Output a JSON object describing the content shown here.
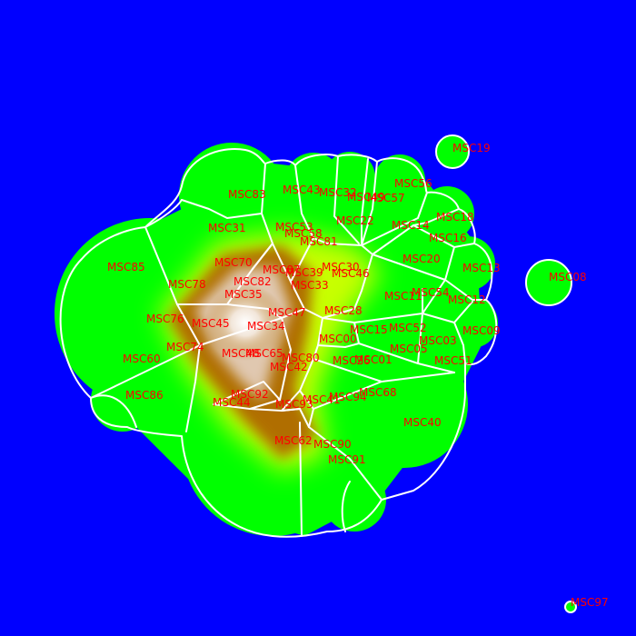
{
  "colors": {
    "background": "#0000ff",
    "land_low": "#00ff00",
    "land_mid": "#c8ff00",
    "land_high": "#b06e00",
    "peak": "#ffffff",
    "border": "#ffffff",
    "label": "#ff0000"
  },
  "regions": [
    {
      "id": "MSC19"
    },
    {
      "id": "MSC56"
    },
    {
      "id": "MSC43"
    },
    {
      "id": "MSC32"
    },
    {
      "id": "MSC83"
    },
    {
      "id": "MSC49"
    },
    {
      "id": "MSC57"
    },
    {
      "id": "MSC18"
    },
    {
      "id": "MSC31"
    },
    {
      "id": "MSC53"
    },
    {
      "id": "MSC22"
    },
    {
      "id": "MSC14"
    },
    {
      "id": "MSC58"
    },
    {
      "id": "MSC16"
    },
    {
      "id": "MSC81"
    },
    {
      "id": "MSC85"
    },
    {
      "id": "MSC20"
    },
    {
      "id": "MSC70"
    },
    {
      "id": "MSC30"
    },
    {
      "id": "MSC13"
    },
    {
      "id": "MSC87"
    },
    {
      "id": "MSC39"
    },
    {
      "id": "MSC46"
    },
    {
      "id": "MSC08"
    },
    {
      "id": "MSC82"
    },
    {
      "id": "MSC78"
    },
    {
      "id": "MSC33"
    },
    {
      "id": "MSC54"
    },
    {
      "id": "MSC35"
    },
    {
      "id": "MSC11"
    },
    {
      "id": "MSC12"
    },
    {
      "id": "MSC47"
    },
    {
      "id": "MSC28"
    },
    {
      "id": "MSC76"
    },
    {
      "id": "MSC45"
    },
    {
      "id": "MSC34"
    },
    {
      "id": "MSC52"
    },
    {
      "id": "MSC15"
    },
    {
      "id": "MSC09"
    },
    {
      "id": "MSC00"
    },
    {
      "id": "MSC03"
    },
    {
      "id": "MSC74"
    },
    {
      "id": "MSC05"
    },
    {
      "id": "MSC48"
    },
    {
      "id": "MSC65"
    },
    {
      "id": "MSC80"
    },
    {
      "id": "MSC60"
    },
    {
      "id": "MSC26"
    },
    {
      "id": "MSC01"
    },
    {
      "id": "MSC51"
    },
    {
      "id": "MSC42"
    },
    {
      "id": "MSC86"
    },
    {
      "id": "MSC68"
    },
    {
      "id": "MSC92"
    },
    {
      "id": "MSC94"
    },
    {
      "id": "MSC44"
    },
    {
      "id": "MSC41"
    },
    {
      "id": "MSC93"
    },
    {
      "id": "MSC40"
    },
    {
      "id": "MSC62"
    },
    {
      "id": "MSC90"
    },
    {
      "id": "MSC91"
    },
    {
      "id": "MSC97"
    }
  ]
}
